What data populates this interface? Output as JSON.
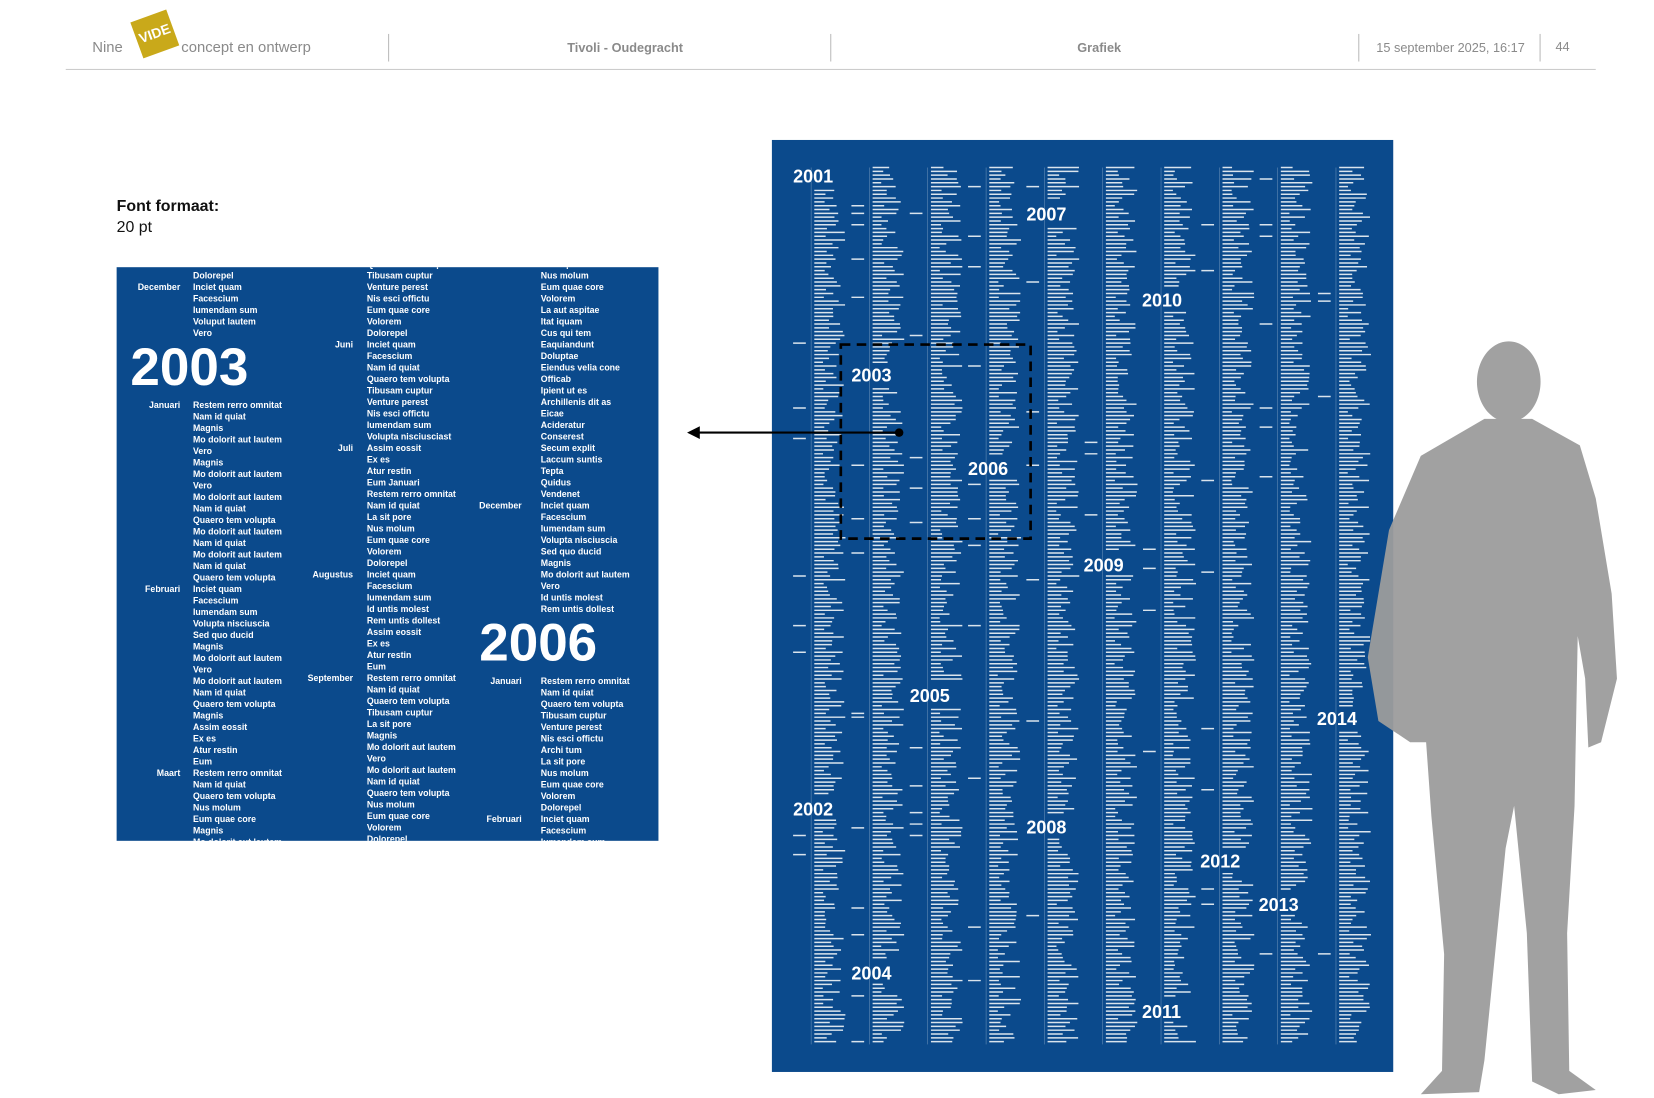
{
  "header": {
    "brand_left": "Nine",
    "logo": "VIDE",
    "brand_right": "concept en ontwerp",
    "project": "Tivoli - Oudegracht",
    "section": "Grafiek",
    "date": "15 september 2025, 16:17",
    "page": "44"
  },
  "font_note": {
    "label": "Font formaat:",
    "value": "20 pt"
  },
  "detail": {
    "columns": [
      [
        {
          "text": "Volorem"
        },
        {
          "text": "Dolorepel"
        },
        {
          "month": "December",
          "text": "Inciet quam"
        },
        {
          "text": "Facescium"
        },
        {
          "text": "Iumendam sum"
        },
        {
          "text": "Voluput lautem"
        },
        {
          "text": "Vero"
        },
        {
          "year": "2003"
        },
        {
          "month": "Januari",
          "text": "Restem rerro omnitat"
        },
        {
          "text": "Nam id quiat"
        },
        {
          "text": "Magnis"
        },
        {
          "text": "Mo dolorit aut lautem"
        },
        {
          "text": "Vero"
        },
        {
          "text": "Magnis"
        },
        {
          "text": "Mo dolorit aut lautem"
        },
        {
          "text": "Vero"
        },
        {
          "text": "Mo dolorit aut lautem"
        },
        {
          "text": "Nam id quiat"
        },
        {
          "text": "Quaero tem volupta"
        },
        {
          "text": "Mo dolorit aut lautem"
        },
        {
          "text": "Nam id quiat"
        },
        {
          "text": "Mo dolorit aut lautem"
        },
        {
          "text": "Nam id quiat"
        },
        {
          "text": "Quaero tem volupta"
        },
        {
          "month": "Februari",
          "text": "Inciet quam"
        },
        {
          "text": "Facescium"
        },
        {
          "text": "Iumendam sum"
        },
        {
          "text": "Volupta nisciuscia"
        },
        {
          "text": "Sed quo ducid"
        },
        {
          "text": "Magnis"
        },
        {
          "text": "Mo dolorit aut lautem"
        },
        {
          "text": "Vero"
        },
        {
          "text": "Mo dolorit aut lautem"
        },
        {
          "text": "Nam id quiat"
        },
        {
          "text": "Quaero tem volupta"
        },
        {
          "text": "Magnis"
        },
        {
          "text": "Assim eossit"
        },
        {
          "text": "Ex es"
        },
        {
          "text": "Atur restin"
        },
        {
          "text": "Eum"
        },
        {
          "month": "Maart",
          "text": "Restem rerro omnitat"
        },
        {
          "text": "Nam id quiat"
        },
        {
          "text": "Quaero tem volupta"
        },
        {
          "text": "Nus molum"
        },
        {
          "text": "Eum quae core"
        },
        {
          "text": "Magnis"
        },
        {
          "text": "Mo dolorit aut lautem"
        }
      ],
      [
        {
          "text": "Quaero tem volupta"
        },
        {
          "text": "Tibusam cuptur"
        },
        {
          "text": "Venture perest"
        },
        {
          "text": "Nis esci offictu"
        },
        {
          "text": "Eum quae core"
        },
        {
          "text": "Volorem"
        },
        {
          "text": "Dolorepel"
        },
        {
          "month": "Juni",
          "text": "Inciet quam"
        },
        {
          "text": "Facescium"
        },
        {
          "text": "Nam id quiat"
        },
        {
          "text": "Quaero tem volupta"
        },
        {
          "text": "Tibusam cuptur"
        },
        {
          "text": "Venture perest"
        },
        {
          "text": "Nis esci offictu"
        },
        {
          "text": "Iumendam sum"
        },
        {
          "text": "Volupta nisciusciast"
        },
        {
          "month": "Juli",
          "text": "Assim eossit"
        },
        {
          "text": "Ex es"
        },
        {
          "text": "Atur restin"
        },
        {
          "text": "Eum Januari"
        },
        {
          "text": "Restem rerro omnitat"
        },
        {
          "text": "Nam id quiat"
        },
        {
          "text": "La sit pore"
        },
        {
          "text": "Nus molum"
        },
        {
          "text": "Eum quae core"
        },
        {
          "text": "Volorem"
        },
        {
          "text": "Dolorepel"
        },
        {
          "month": "Augustus",
          "text": "Inciet quam"
        },
        {
          "text": "Facescium"
        },
        {
          "text": "Iumendam sum"
        },
        {
          "text": "Id untis molest"
        },
        {
          "text": "Rem untis dollest"
        },
        {
          "text": "Assim eossit"
        },
        {
          "text": "Ex es"
        },
        {
          "text": "Atur restin"
        },
        {
          "text": "Eum"
        },
        {
          "month": "September",
          "text": "Restem rerro omnitat"
        },
        {
          "text": "Nam id quiat"
        },
        {
          "text": "Quaero tem volupta"
        },
        {
          "text": "Tibusam cuptur"
        },
        {
          "text": "La sit pore"
        },
        {
          "text": "Magnis"
        },
        {
          "text": "Mo dolorit aut lautem"
        },
        {
          "text": "Vero"
        },
        {
          "text": "Mo dolorit aut lautem"
        },
        {
          "text": "Nam id quiat"
        },
        {
          "text": "Quaero tem volupta"
        },
        {
          "text": "Nus molum"
        },
        {
          "text": "Eum quae core"
        },
        {
          "text": "Volorem"
        },
        {
          "text": "Dolorepel"
        }
      ],
      [
        {
          "text": "La sit pore"
        },
        {
          "text": "Nus molum"
        },
        {
          "text": "Eum quae core"
        },
        {
          "text": "Volorem"
        },
        {
          "text": "La aut aspitae"
        },
        {
          "text": "Itat iquam"
        },
        {
          "text": "Cus qui tem"
        },
        {
          "text": "Eaquiandunt"
        },
        {
          "text": "Doluptae"
        },
        {
          "text": "Eiendus velia cone"
        },
        {
          "text": "Officab"
        },
        {
          "text": "Ipient ut es"
        },
        {
          "text": "Archillenis dit as"
        },
        {
          "text": "Eicae"
        },
        {
          "text": "Acideratur"
        },
        {
          "text": "Conserest"
        },
        {
          "text": "Secum explit"
        },
        {
          "text": "Laccum suntis"
        },
        {
          "text": "Tepta"
        },
        {
          "text": "Quidus"
        },
        {
          "text": "Vendenet"
        },
        {
          "month": "December",
          "text": "Inciet quam"
        },
        {
          "text": "Facescium"
        },
        {
          "text": "Iumendam sum"
        },
        {
          "text": "Volupta nisciuscia"
        },
        {
          "text": "Sed quo ducid"
        },
        {
          "text": "Magnis"
        },
        {
          "text": "Mo dolorit aut lautem"
        },
        {
          "text": "Vero"
        },
        {
          "text": "Id untis molest"
        },
        {
          "text": "Rem untis dollest"
        },
        {
          "year": "2006"
        },
        {
          "month": "Januari",
          "text": "Restem rerro omnitat"
        },
        {
          "text": "Nam id quiat"
        },
        {
          "text": "Quaero tem volupta"
        },
        {
          "text": "Tibusam cuptur"
        },
        {
          "text": "Venture perest"
        },
        {
          "text": "Nis esci offictu"
        },
        {
          "text": "Archi tum"
        },
        {
          "text": "La sit pore"
        },
        {
          "text": "Nus molum"
        },
        {
          "text": "Eum quae core"
        },
        {
          "text": "Volorem"
        },
        {
          "text": "Dolorepel"
        },
        {
          "month": "Februari",
          "text": "Inciet quam"
        },
        {
          "text": "Facescium"
        },
        {
          "text": "Iumendam sum"
        }
      ]
    ]
  },
  "poster": {
    "years": [
      "2001",
      "2007",
      "2010",
      "2003",
      "2006",
      "2009",
      "2005",
      "2014",
      "2002",
      "2008",
      "2012",
      "2013",
      "2004",
      "2011"
    ]
  }
}
